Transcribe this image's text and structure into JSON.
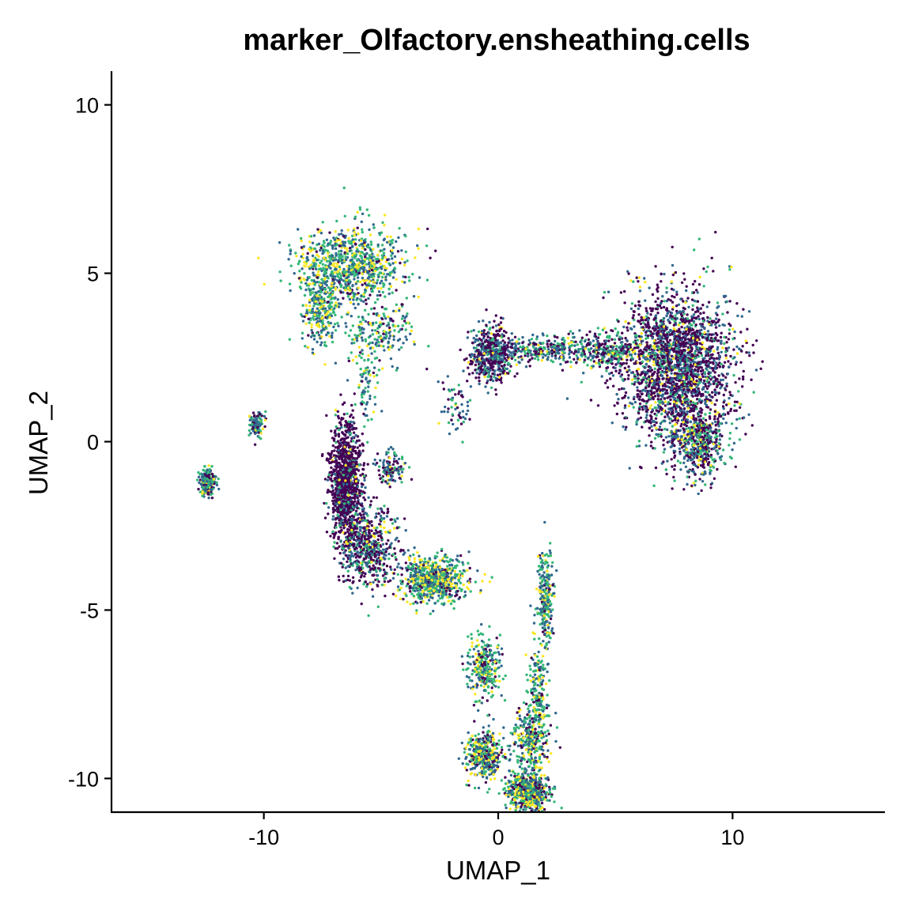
{
  "chart_data": {
    "type": "scatter",
    "title": "marker_Olfactory.ensheathing.cells",
    "xlabel": "UMAP_1",
    "ylabel": "UMAP_2",
    "xlim": [
      -16.5,
      16.5
    ],
    "ylim": [
      -11,
      11
    ],
    "xticks": [
      -10,
      0,
      10
    ],
    "xtick_labels": [
      "-10",
      "0",
      "10"
    ],
    "yticks": [
      -10,
      -5,
      0,
      5,
      10
    ],
    "ytick_labels": [
      "-10",
      "-5",
      "0",
      "5",
      "10"
    ],
    "grid": false,
    "legend": "none",
    "colormap": [
      "#440154",
      "#31688e",
      "#35b779",
      "#fde725"
    ],
    "clusters": [
      {
        "center": [
          -6.3,
          5.2
        ],
        "spread": [
          1.5,
          0.8
        ],
        "n": 900,
        "colors": [
          0.08,
          0.35,
          0.37,
          0.2
        ]
      },
      {
        "center": [
          -7.6,
          3.9
        ],
        "spread": [
          0.5,
          0.7
        ],
        "n": 250,
        "colors": [
          0.08,
          0.35,
          0.37,
          0.2
        ]
      },
      {
        "center": [
          -5.0,
          3.2
        ],
        "spread": [
          1.0,
          0.6
        ],
        "n": 200,
        "colors": [
          0.1,
          0.4,
          0.35,
          0.15
        ]
      },
      {
        "center": [
          -5.6,
          1.5
        ],
        "spread": [
          0.35,
          0.9
        ],
        "n": 70,
        "colors": [
          0.1,
          0.45,
          0.35,
          0.1
        ]
      },
      {
        "center": [
          7.6,
          2.3
        ],
        "spread": [
          1.6,
          1.4
        ],
        "n": 2200,
        "colors": [
          0.55,
          0.25,
          0.12,
          0.08
        ]
      },
      {
        "center": [
          8.6,
          0.0
        ],
        "spread": [
          0.8,
          0.7
        ],
        "n": 500,
        "colors": [
          0.4,
          0.3,
          0.22,
          0.08
        ]
      },
      {
        "center": [
          4.6,
          2.7
        ],
        "spread": [
          1.0,
          0.35
        ],
        "n": 300,
        "colors": [
          0.35,
          0.3,
          0.25,
          0.1
        ]
      },
      {
        "center": [
          -0.3,
          2.6
        ],
        "spread": [
          0.6,
          0.55
        ],
        "n": 500,
        "colors": [
          0.55,
          0.3,
          0.1,
          0.05
        ]
      },
      {
        "center": [
          1.8,
          2.7
        ],
        "spread": [
          1.2,
          0.25
        ],
        "n": 250,
        "colors": [
          0.3,
          0.4,
          0.2,
          0.1
        ]
      },
      {
        "center": [
          -1.8,
          1.0
        ],
        "spread": [
          0.4,
          0.6
        ],
        "n": 60,
        "colors": [
          0.3,
          0.4,
          0.2,
          0.1
        ]
      },
      {
        "center": [
          -12.4,
          -1.2
        ],
        "spread": [
          0.22,
          0.25
        ],
        "n": 220,
        "colors": [
          0.15,
          0.35,
          0.35,
          0.15
        ]
      },
      {
        "center": [
          -10.3,
          0.5
        ],
        "spread": [
          0.2,
          0.25
        ],
        "n": 110,
        "colors": [
          0.15,
          0.35,
          0.35,
          0.15
        ]
      },
      {
        "center": [
          -6.5,
          -1.2
        ],
        "spread": [
          0.45,
          1.2
        ],
        "n": 1100,
        "colors": [
          0.75,
          0.15,
          0.07,
          0.03
        ]
      },
      {
        "center": [
          -5.5,
          -3.2
        ],
        "spread": [
          0.8,
          0.8
        ],
        "n": 550,
        "colors": [
          0.5,
          0.25,
          0.18,
          0.07
        ]
      },
      {
        "center": [
          -2.8,
          -4.1
        ],
        "spread": [
          0.9,
          0.45
        ],
        "n": 700,
        "colors": [
          0.1,
          0.3,
          0.35,
          0.25
        ]
      },
      {
        "center": [
          -4.6,
          -0.8
        ],
        "spread": [
          0.4,
          0.35
        ],
        "n": 120,
        "colors": [
          0.3,
          0.4,
          0.2,
          0.1
        ]
      },
      {
        "center": [
          2.0,
          -4.6
        ],
        "spread": [
          0.25,
          0.9
        ],
        "n": 240,
        "colors": [
          0.1,
          0.35,
          0.4,
          0.15
        ]
      },
      {
        "center": [
          -0.6,
          -6.7
        ],
        "spread": [
          0.45,
          0.6
        ],
        "n": 280,
        "colors": [
          0.1,
          0.3,
          0.4,
          0.2
        ]
      },
      {
        "center": [
          1.7,
          -7.6
        ],
        "spread": [
          0.3,
          1.0
        ],
        "n": 220,
        "colors": [
          0.1,
          0.3,
          0.4,
          0.2
        ]
      },
      {
        "center": [
          -0.6,
          -9.3
        ],
        "spread": [
          0.5,
          0.45
        ],
        "n": 450,
        "colors": [
          0.15,
          0.3,
          0.3,
          0.25
        ]
      },
      {
        "center": [
          1.3,
          -10.4
        ],
        "spread": [
          0.55,
          0.4
        ],
        "n": 650,
        "colors": [
          0.15,
          0.3,
          0.3,
          0.25
        ]
      },
      {
        "center": [
          1.3,
          -8.9
        ],
        "spread": [
          0.5,
          0.6
        ],
        "n": 260,
        "colors": [
          0.15,
          0.3,
          0.35,
          0.2
        ]
      }
    ]
  }
}
